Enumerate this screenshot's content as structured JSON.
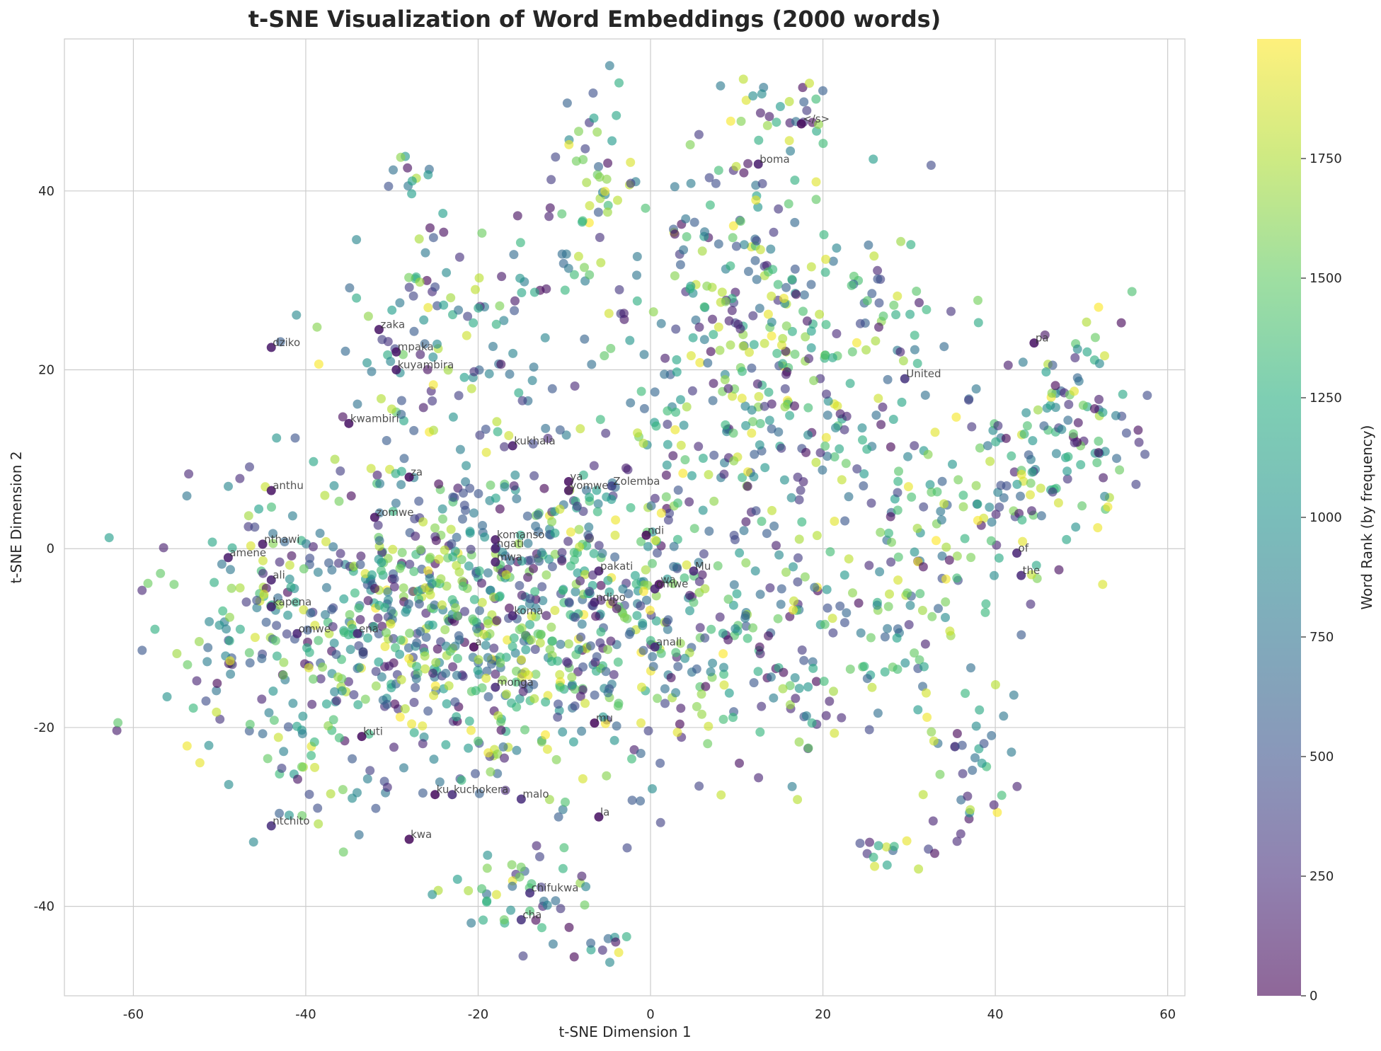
{
  "chart_data": {
    "type": "scatter",
    "title": "t-SNE Visualization of Word Embeddings (2000 words)",
    "xlabel": "t-SNE Dimension 1",
    "ylabel": "t-SNE Dimension 2",
    "xlim": [
      -68,
      62
    ],
    "ylim": [
      -50,
      57
    ],
    "x_ticks": [
      "-60",
      "-40",
      "-20",
      "0",
      "20",
      "40",
      "60"
    ],
    "y_ticks": [
      "-40",
      "-20",
      "0",
      "20",
      "40"
    ],
    "grid": true,
    "colorbar": {
      "label": "Word Rank (by frequency)",
      "colormap": "viridis",
      "range": [
        0,
        2000
      ],
      "ticks": [
        "0",
        "250",
        "500",
        "750",
        "1000",
        "1250",
        "1500",
        "1750"
      ]
    },
    "point_count": 2000,
    "labeled_points": [
      {
        "word": "</s>",
        "x": 17.5,
        "y": 47.5,
        "rank": 50
      },
      {
        "word": "boma",
        "x": 12.5,
        "y": 43,
        "rank": 150
      },
      {
        "word": "zaka",
        "x": -31.5,
        "y": 24.5,
        "rank": 100
      },
      {
        "word": "dziko",
        "x": -44,
        "y": 22.5,
        "rank": 120
      },
      {
        "word": "mpaka",
        "x": -29.5,
        "y": 22,
        "rank": 110
      },
      {
        "word": "kuyambira",
        "x": -29.5,
        "y": 20,
        "rank": 130
      },
      {
        "word": "pa",
        "x": 44.5,
        "y": 23,
        "rank": 80
      },
      {
        "word": "United",
        "x": 29.5,
        "y": 19,
        "rank": 300
      },
      {
        "word": "kwambiri",
        "x": -35,
        "y": 14,
        "rank": 90
      },
      {
        "word": "kukhala",
        "x": -16,
        "y": 11.5,
        "rank": 140
      },
      {
        "word": "za",
        "x": -28,
        "y": 8,
        "rank": 60
      },
      {
        "word": "ya",
        "x": -9.5,
        "y": 7.5,
        "rank": 70
      },
      {
        "word": "yomwe",
        "x": -9.5,
        "y": 6.5,
        "rank": 85
      },
      {
        "word": "Zolemba",
        "x": -4.5,
        "y": 7,
        "rank": 400
      },
      {
        "word": "anthu",
        "x": -44,
        "y": 6.5,
        "rank": 95
      },
      {
        "word": "zomwe",
        "x": -32,
        "y": 3.5,
        "rank": 105
      },
      {
        "word": "ndi",
        "x": -0.5,
        "y": 1.5,
        "rank": 20
      },
      {
        "word": "komanso",
        "x": -18,
        "y": 1,
        "rank": 115
      },
      {
        "word": "ngati",
        "x": -18,
        "y": 0,
        "rank": 160
      },
      {
        "word": "nthawi",
        "x": -45,
        "y": 0.5,
        "rank": 125
      },
      {
        "word": "amene",
        "x": -49,
        "y": -1,
        "rank": 135
      },
      {
        "word": "mwa",
        "x": -18,
        "y": -1.5,
        "rank": 145
      },
      {
        "word": "of",
        "x": 42.5,
        "y": -0.5,
        "rank": 200
      },
      {
        "word": "pakati",
        "x": -6,
        "y": -2.5,
        "rank": 155
      },
      {
        "word": "Mu",
        "x": 5,
        "y": -2.5,
        "rank": 210
      },
      {
        "word": "ali",
        "x": -44,
        "y": -3.5,
        "rank": 165
      },
      {
        "word": "the",
        "x": 43,
        "y": -3,
        "rank": 220
      },
      {
        "word": "wa",
        "x": 1,
        "y": -4,
        "rank": 30
      },
      {
        "word": "omwe",
        "x": 0.5,
        "y": -4.5,
        "rank": 175
      },
      {
        "word": "kapena",
        "x": -44,
        "y": -6.5,
        "rank": 185
      },
      {
        "word": "ndipo",
        "x": -6.5,
        "y": -6,
        "rank": 190
      },
      {
        "word": "koma",
        "x": -16,
        "y": -7.5,
        "rank": 195
      },
      {
        "word": "omwe",
        "x": -41,
        "y": -9.5,
        "rank": 205
      },
      {
        "word": "ena",
        "x": -34,
        "y": -9.5,
        "rank": 215
      },
      {
        "word": "a",
        "x": -20.5,
        "y": -11,
        "rank": 10
      },
      {
        "word": "anali",
        "x": 0.5,
        "y": -11,
        "rank": 225
      },
      {
        "word": "monga",
        "x": -18,
        "y": -15.5,
        "rank": 230
      },
      {
        "word": "mu",
        "x": -6.5,
        "y": -19.5,
        "rank": 40
      },
      {
        "word": "kuti",
        "x": -33.5,
        "y": -21,
        "rank": 65
      },
      {
        "word": "ku",
        "x": -25,
        "y": -27.5,
        "rank": 55
      },
      {
        "word": "kuchokera",
        "x": -23,
        "y": -27.5,
        "rank": 240
      },
      {
        "word": "malo",
        "x": -15,
        "y": -28,
        "rank": 250
      },
      {
        "word": "ntchito",
        "x": -44,
        "y": -31,
        "rank": 260
      },
      {
        "word": "la",
        "x": -6,
        "y": -30,
        "rank": 75
      },
      {
        "word": "kwa",
        "x": -28,
        "y": -32.5,
        "rank": 45
      },
      {
        "word": "chifukwa",
        "x": -14,
        "y": -38.5,
        "rank": 270
      },
      {
        "word": "cha",
        "x": -15,
        "y": -41.5,
        "rank": 280
      }
    ]
  }
}
